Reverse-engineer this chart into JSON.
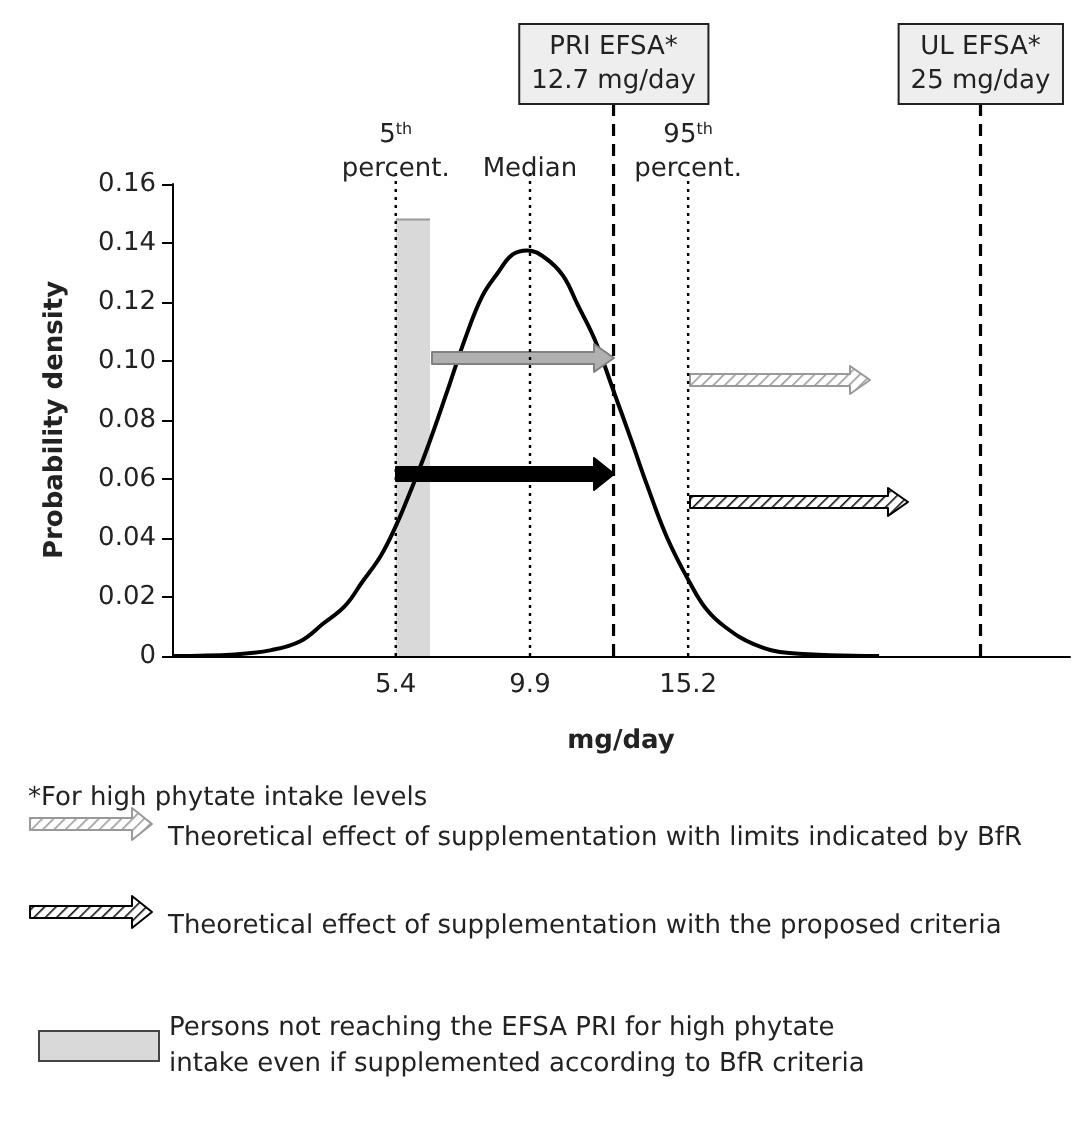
{
  "chart_data": {
    "type": "line",
    "xlabel": "mg/day",
    "ylabel": "Probability density",
    "xlim": [
      -2.1,
      28
    ],
    "xticks": [
      5.4,
      9.9,
      15.2
    ],
    "ylim": [
      0,
      0.16
    ],
    "yticks": [
      {
        "value": 0,
        "label": "0"
      },
      {
        "value": 0.02,
        "label": "0.02"
      },
      {
        "value": 0.04,
        "label": "0.04"
      },
      {
        "value": 0.06,
        "label": "0.06"
      },
      {
        "value": 0.08,
        "label": "0.08"
      },
      {
        "value": 0.1,
        "label": "0.10"
      },
      {
        "value": 0.12,
        "label": "0.12"
      },
      {
        "value": 0.14,
        "label": "0.14"
      },
      {
        "value": 0.16,
        "label": "0.16"
      }
    ],
    "grid": false,
    "legend": "bottom",
    "series": [
      {
        "type": "area",
        "name": "Persons not reaching the EFSA PRI for high phytate intake even if supplemented according to BfR criteria",
        "color": "#d9d9d9",
        "x": [
          5.4,
          6.55
        ],
        "values": [
          0.148,
          0.148
        ]
      },
      {
        "type": "line",
        "color": "#000000",
        "x": [
          -2.06,
          0,
          1.23,
          2.2,
          2.97,
          3.7,
          4.27,
          4.9,
          5.4,
          5.9,
          6.44,
          7.1,
          7.74,
          8.3,
          8.83,
          9.3,
          9.8,
          10.4,
          11.0,
          11.5,
          12.08,
          12.73,
          13.3,
          13.82,
          14.5,
          15.25,
          15.8,
          16.42,
          17.4,
          18.6,
          21.6
        ],
        "values": [
          0,
          0.0005,
          0.002,
          0.005,
          0.011,
          0.017,
          0.025,
          0.034,
          0.044,
          0.056,
          0.07,
          0.089,
          0.108,
          0.122,
          0.13,
          0.136,
          0.1375,
          0.135,
          0.129,
          0.119,
          0.107,
          0.089,
          0.073,
          0.058,
          0.04,
          0.025,
          0.016,
          0.01,
          0.004,
          0.001,
          0
        ]
      }
    ],
    "ref_lines": [
      {
        "axis": "x",
        "value": 5.4,
        "label": "5$^{th}$\npercent.",
        "line_style": "dotted"
      },
      {
        "axis": "x",
        "value": 9.9,
        "label": "Median",
        "line_style": "dotted"
      },
      {
        "axis": "x",
        "value": 12.7,
        "label": "PRI EFSA*\n12.7 mg/day",
        "line_style": "dashed"
      },
      {
        "axis": "x",
        "value": 15.2,
        "label": "95$^{th}$\npercent.",
        "line_style": "dotted"
      },
      {
        "axis": "x",
        "value": 25,
        "label": "UL EFSA*\n25 mg/day",
        "line_style": "dashed"
      }
    ],
    "annotations": [
      "*For high phytate intake levels",
      "Theoretical effect of supplementation with limits indicated by BfR",
      "Theoretical effect of supplementation with the proposed criteria"
    ]
  }
}
